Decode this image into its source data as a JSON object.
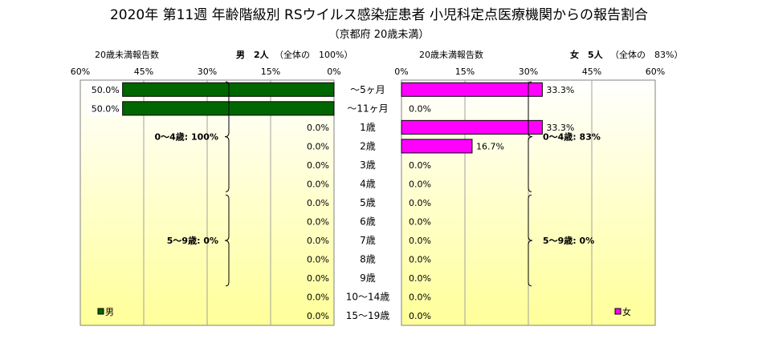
{
  "title": "2020年 第11週 年齢階級別 RSウイルス感染症患者 小児科定点医療機関からの報告割合",
  "subtitle": "（京都府 20歳未満）",
  "colors": {
    "male": "#006600",
    "female": "#ff00ff",
    "panel_top": "#ffffff",
    "panel_bottom": "#ffff99"
  },
  "chart_data": {
    "type": "bar",
    "orientation": "horizontal-butterfly",
    "categories": [
      "～5ヶ月",
      "～11ヶ月",
      "1歳",
      "2歳",
      "3歳",
      "4歳",
      "5歳",
      "6歳",
      "7歳",
      "8歳",
      "9歳",
      "10～14歳",
      "15～19歳"
    ],
    "xlim": [
      0,
      60
    ],
    "x_ticks": [
      "0%",
      "15%",
      "30%",
      "45%",
      "60%"
    ],
    "grid": true,
    "series": [
      {
        "name": "男",
        "values": [
          50.0,
          50.0,
          0.0,
          0.0,
          0.0,
          0.0,
          0.0,
          0.0,
          0.0,
          0.0,
          0.0,
          0.0,
          0.0
        ],
        "labels": [
          "50.0%",
          "50.0%",
          "0.0%",
          "0.0%",
          "0.0%",
          "0.0%",
          "0.0%",
          "0.0%",
          "0.0%",
          "0.0%",
          "0.0%",
          "0.0%",
          "0.0%"
        ]
      },
      {
        "name": "女",
        "values": [
          33.3,
          0.0,
          33.3,
          16.7,
          0.0,
          0.0,
          0.0,
          0.0,
          0.0,
          0.0,
          0.0,
          0.0,
          0.0
        ],
        "labels": [
          "33.3%",
          "0.0%",
          "33.3%",
          "16.7%",
          "0.0%",
          "0.0%",
          "0.0%",
          "0.0%",
          "0.0%",
          "0.0%",
          "0.0%",
          "0.0%",
          "0.0%"
        ]
      }
    ],
    "male_panel": {
      "header_left": "20歳未満報告数",
      "header_right_bold": "男　2人",
      "header_right_normal": "（全体の　100%）",
      "legend": "男",
      "group_labels": [
        {
          "text": "0～4歳: 100%",
          "from": 0,
          "to": 5
        },
        {
          "text": "5～9歳: 0%",
          "from": 6,
          "to": 10
        }
      ]
    },
    "female_panel": {
      "header_left": "20歳未満報告数",
      "header_right_bold": "女　5人",
      "header_right_normal": "（全体の　83%）",
      "legend": "女",
      "group_labels": [
        {
          "text": "0～4歳: 83%",
          "from": 0,
          "to": 5
        },
        {
          "text": "5～9歳: 0%",
          "from": 6,
          "to": 10
        }
      ]
    }
  }
}
